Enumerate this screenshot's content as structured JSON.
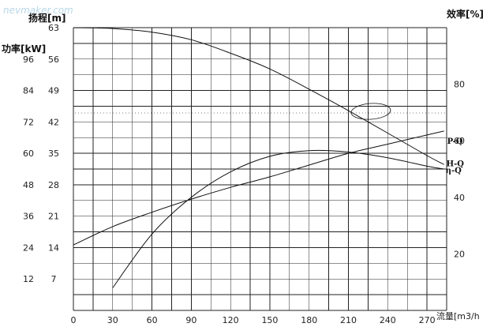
{
  "watermark": "nevmaker.com",
  "chart_data": {
    "type": "line",
    "title": "",
    "header_left_head": "扬程[m]",
    "header_left_power": "功率[kW]",
    "header_right": "效率[%]",
    "xlabel": "流量[m3/h",
    "x_ticks": [
      "0",
      "30",
      "60",
      "90",
      "120",
      "150",
      "180",
      "210",
      "240",
      "270"
    ],
    "xlim": [
      0,
      285
    ],
    "head_axis": {
      "ticks": [
        "63",
        "56",
        "49",
        "42",
        "35",
        "28",
        "21",
        "14",
        "7"
      ],
      "ylim": [
        0,
        63
      ]
    },
    "power_axis": {
      "ticks": [
        "96",
        "84",
        "72",
        "60",
        "48",
        "36",
        "24",
        "12"
      ],
      "ylim": [
        0,
        108
      ]
    },
    "efficiency_axis": {
      "ticks": [
        "80",
        "60",
        "40",
        "20"
      ],
      "ylim": [
        0,
        100
      ]
    },
    "series": [
      {
        "name": "H-Q",
        "axis": "head",
        "x": [
          0,
          30,
          60,
          90,
          120,
          150,
          180,
          210,
          240,
          270,
          283
        ],
        "y": [
          63,
          62.8,
          62,
          60.3,
          57.3,
          53.8,
          49.3,
          44.5,
          39.5,
          34.5,
          32.5
        ]
      },
      {
        "name": "η-Q",
        "axis": "efficiency",
        "x": [
          30,
          60,
          90,
          120,
          150,
          180,
          210,
          240,
          270,
          283
        ],
        "y": [
          8,
          27,
          40,
          49,
          54.5,
          56.5,
          56,
          54,
          51,
          50
        ]
      },
      {
        "name": "P-Q",
        "axis": "power",
        "x": [
          0,
          30,
          60,
          90,
          120,
          150,
          180,
          210,
          240,
          270,
          283
        ],
        "y": [
          25,
          32,
          37.5,
          42.5,
          47,
          51,
          55.5,
          60,
          63.5,
          67,
          68.5
        ]
      }
    ],
    "grid": true,
    "legend": "none"
  }
}
